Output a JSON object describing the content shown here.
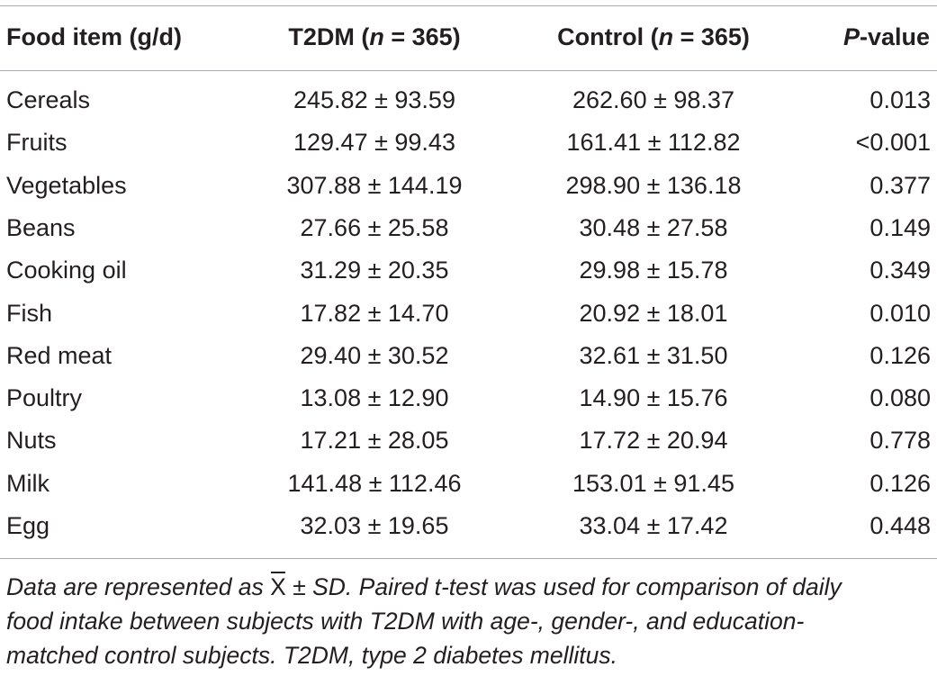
{
  "table": {
    "headers": {
      "item": "Food item (g/d)",
      "t2dm_prefix": "T2DM (",
      "t2dm_n": "n",
      "t2dm_suffix": " = 365)",
      "control_prefix": "Control (",
      "control_n": "n",
      "control_suffix": " = 365)",
      "p_prefix": "P",
      "p_suffix": "-value"
    },
    "rows": [
      {
        "item": "Cereals",
        "t2dm": "245.82 ± 93.59",
        "control": "262.60 ± 98.37",
        "p": "0.013"
      },
      {
        "item": "Fruits",
        "t2dm": "129.47 ± 99.43",
        "control": "161.41 ± 112.82",
        "p": "<0.001"
      },
      {
        "item": "Vegetables",
        "t2dm": "307.88 ± 144.19",
        "control": "298.90 ± 136.18",
        "p": "0.377"
      },
      {
        "item": "Beans",
        "t2dm": "27.66 ± 25.58",
        "control": "30.48 ± 27.58",
        "p": "0.149"
      },
      {
        "item": "Cooking oil",
        "t2dm": "31.29 ± 20.35",
        "control": "29.98 ± 15.78",
        "p": "0.349"
      },
      {
        "item": "Fish",
        "t2dm": "17.82 ± 14.70",
        "control": "20.92 ± 18.01",
        "p": "0.010"
      },
      {
        "item": "Red meat",
        "t2dm": "29.40 ± 30.52",
        "control": "32.61 ± 31.50",
        "p": "0.126"
      },
      {
        "item": "Poultry",
        "t2dm": "13.08 ± 12.90",
        "control": "14.90 ± 15.76",
        "p": "0.080"
      },
      {
        "item": "Nuts",
        "t2dm": "17.21 ± 28.05",
        "control": "17.72 ± 20.94",
        "p": "0.778"
      },
      {
        "item": "Milk",
        "t2dm": "141.48 ± 112.46",
        "control": "153.01 ± 91.45",
        "p": "0.126"
      },
      {
        "item": "Egg",
        "t2dm": "32.03 ± 19.65",
        "control": "33.04 ± 17.42",
        "p": "0.448"
      }
    ]
  },
  "note": {
    "line1_a": "Data are represented as ",
    "xbar": "X",
    "line1_b": " ± SD. Paired t-test was used for comparison of daily",
    "line2": "food intake between subjects with T2DM with age-, gender-, and education-",
    "line3": "matched control subjects. T2DM, type 2 diabetes mellitus."
  },
  "colors": {
    "text": "#231f20",
    "rule": "#a7a9ac",
    "background": "#ffffff"
  }
}
